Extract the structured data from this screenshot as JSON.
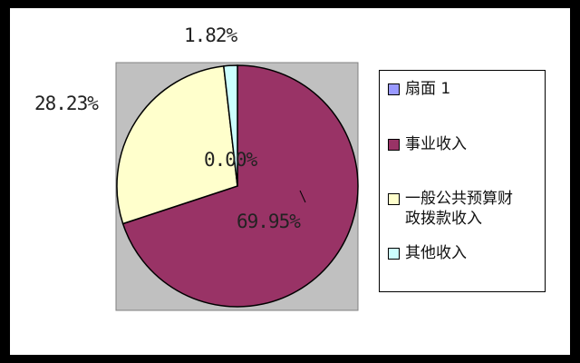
{
  "chart_data": {
    "type": "pie",
    "categories": [
      "扇面 1",
      "事业收入",
      "一般公共预算财政拨款收入",
      "其他收入"
    ],
    "legend_labels": [
      "扇面 1",
      "事业收入",
      "一般公共预算财\n政拨款收入",
      "其他收入"
    ],
    "values": [
      0.0,
      69.95,
      28.23,
      1.82
    ],
    "data_labels": [
      "0.00%",
      "69.95%",
      "28.23%",
      "1.82%"
    ],
    "colors": [
      "#9999ff",
      "#993366",
      "#ffffcc",
      "#ccffff"
    ],
    "legend": "right",
    "plot_background": "#c0c0c0"
  }
}
